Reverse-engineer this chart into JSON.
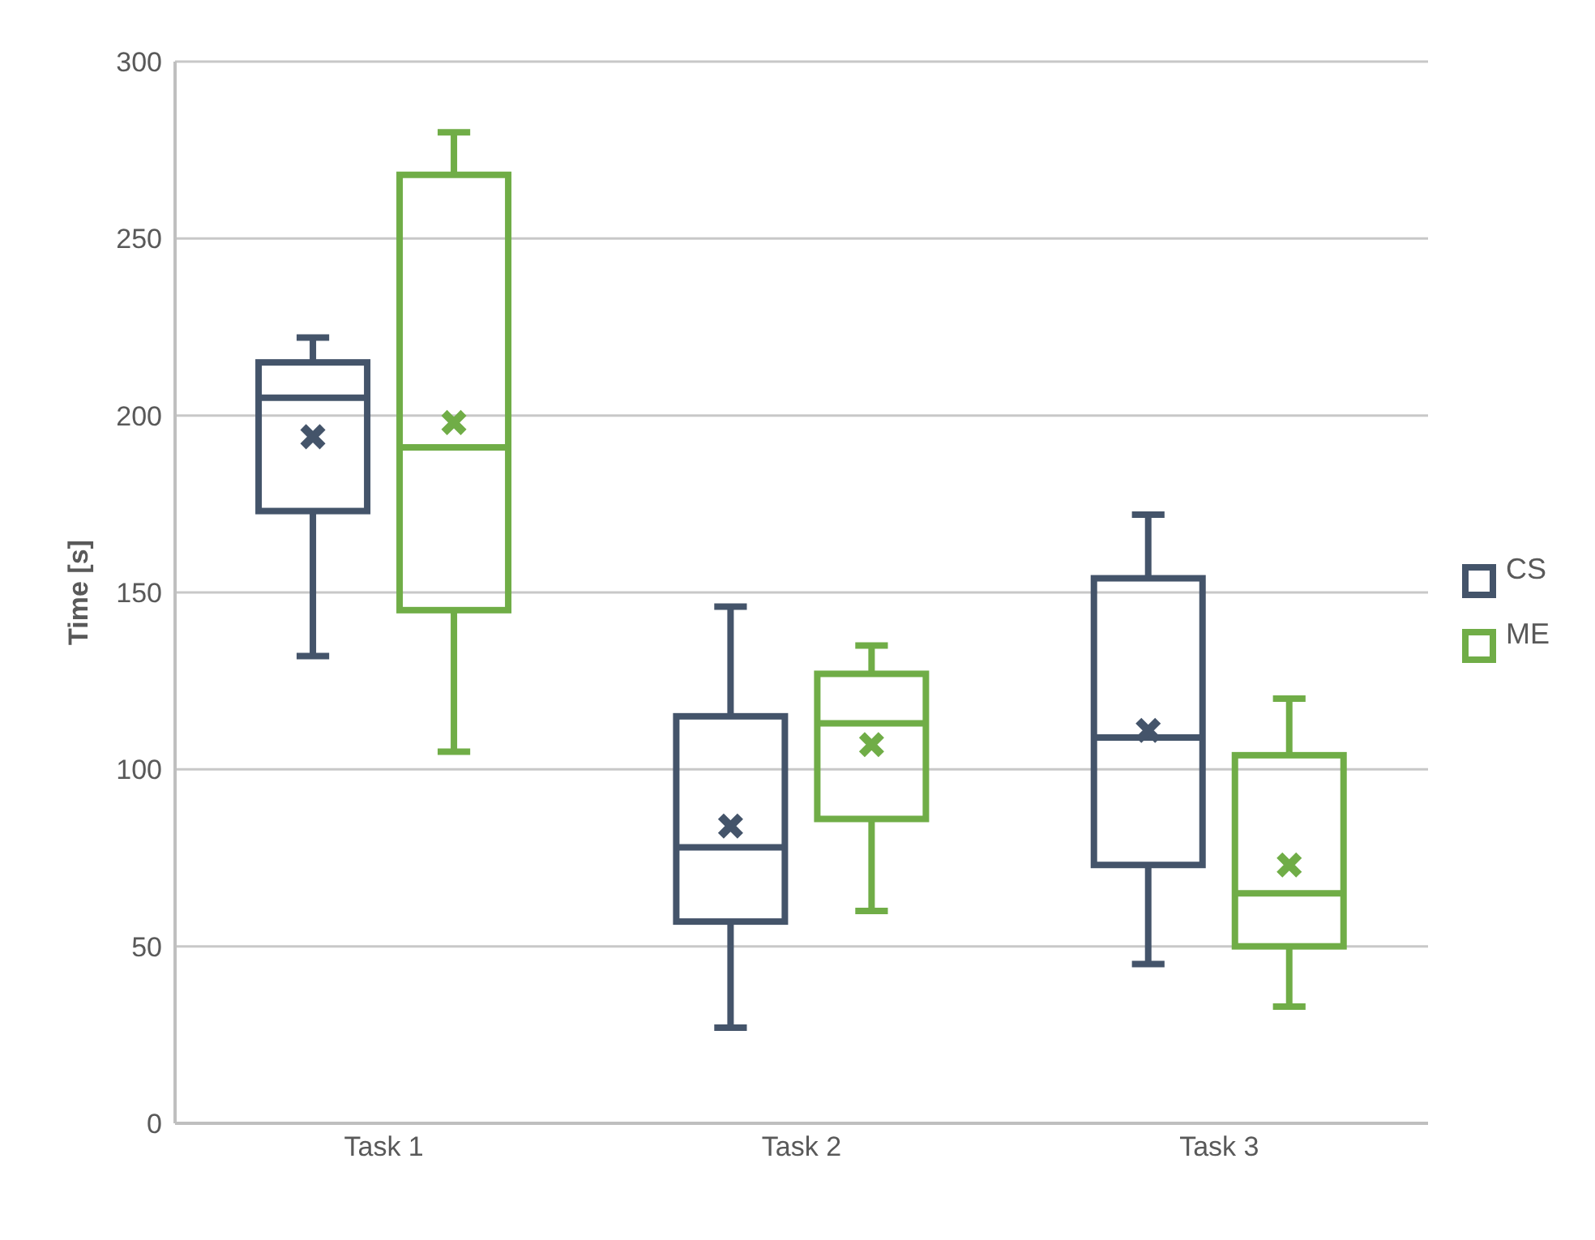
{
  "chart_data": {
    "type": "box",
    "ylabel": "Time [s]",
    "categories": [
      "Task 1",
      "Task 2",
      "Task 3"
    ],
    "ylim": [
      0,
      300
    ],
    "yticks": [
      0,
      50,
      100,
      150,
      200,
      250,
      300
    ],
    "grid": "y",
    "legend": "right",
    "marker": "cross",
    "series": [
      {
        "name": "CS",
        "color": "#44546a",
        "boxes": [
          {
            "low": 132,
            "q1": 173,
            "median": 205,
            "q3": 215,
            "high": 222,
            "mean": 194
          },
          {
            "low": 27,
            "q1": 57,
            "median": 78,
            "q3": 115,
            "high": 146,
            "mean": 84
          },
          {
            "low": 45,
            "q1": 73,
            "median": 109,
            "q3": 154,
            "high": 172,
            "mean": 111
          }
        ]
      },
      {
        "name": "ME",
        "color": "#70ad47",
        "boxes": [
          {
            "low": 105,
            "q1": 145,
            "median": 191,
            "q3": 268,
            "high": 280,
            "mean": 198
          },
          {
            "low": 60,
            "q1": 86,
            "median": 113,
            "q3": 127,
            "high": 135,
            "mean": 107
          },
          {
            "low": 33,
            "q1": 50,
            "median": 65,
            "q3": 104,
            "high": 120,
            "mean": 73
          }
        ]
      }
    ]
  }
}
